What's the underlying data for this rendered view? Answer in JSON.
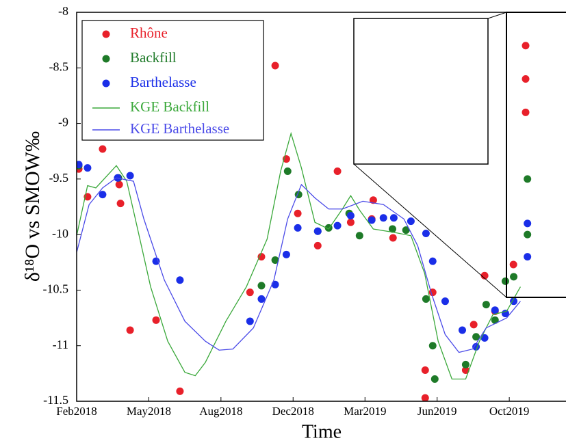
{
  "chart_data": {
    "type": "scatter",
    "x_label": "Time",
    "y_label": "δ¹⁸O vs SMOW‰",
    "xlim": [
      2018.083,
      2019.97
    ],
    "ylim": [
      -11.5,
      -8
    ],
    "xticks": [
      {
        "value": 2018.083,
        "label": "Feb2018"
      },
      {
        "value": 2018.361,
        "label": "May2018"
      },
      {
        "value": 2018.639,
        "label": "Aug2018"
      },
      {
        "value": 2018.917,
        "label": "Dec2018"
      },
      {
        "value": 2019.194,
        "label": "Mar2019"
      },
      {
        "value": 2019.472,
        "label": "Jun2019"
      },
      {
        "value": 2019.75,
        "label": "Oct2019"
      }
    ],
    "yticks": [
      -8,
      -8.5,
      -9,
      -9.5,
      -10,
      -10.5,
      -11,
      -11.5
    ],
    "legend": "top-left",
    "grid": false,
    "series": [
      {
        "name": "Rhône",
        "color": "#e8202a",
        "type": "scatter",
        "x": [
          2018.091,
          2018.125,
          2018.183,
          2018.247,
          2018.252,
          2018.289,
          2018.389,
          2018.481,
          2018.751,
          2018.795,
          2018.848,
          2018.891,
          2018.935,
          2019.012,
          2019.088,
          2019.139,
          2019.226,
          2019.22,
          2019.302,
          2019.455,
          2019.426,
          2019.426,
          2019.582,
          2019.613,
          2019.655,
          2019.695,
          2019.766,
          2019.813,
          2019.813,
          2019.813
        ],
        "values": [
          -9.41,
          -9.66,
          -9.23,
          -9.55,
          -9.72,
          -10.86,
          -10.77,
          -11.41,
          -10.52,
          -10.2,
          -8.48,
          -9.32,
          -9.81,
          -10.1,
          -9.43,
          -9.89,
          -9.69,
          -9.86,
          -10.03,
          -10.52,
          -11.22,
          -11.47,
          -11.22,
          -10.81,
          -10.37,
          -10.69,
          -10.27,
          -8.3,
          -8.6,
          -8.9
        ]
      },
      {
        "name": "Backfill",
        "color": "#1e7a28",
        "type": "scatter",
        "x": [
          2018.091,
          2018.244,
          2018.795,
          2018.848,
          2018.896,
          2018.938,
          2019.012,
          2019.054,
          2019.133,
          2019.173,
          2019.3,
          2019.352,
          2019.429,
          2019.455,
          2019.463,
          2019.582,
          2019.622,
          2019.661,
          2019.695,
          2019.735,
          2019.767,
          2019.82,
          2019.82
        ],
        "values": [
          -9.38,
          -9.49,
          -10.46,
          -10.23,
          -9.43,
          -9.64,
          -9.97,
          -9.94,
          -9.81,
          -10.01,
          -9.95,
          -9.96,
          -10.58,
          -11.0,
          -11.3,
          -11.17,
          -10.92,
          -10.63,
          -10.77,
          -10.42,
          -10.38,
          -9.5,
          -10.0
        ]
      },
      {
        "name": "Barthelasse",
        "color": "#1a2ee8",
        "type": "scatter",
        "x": [
          2018.091,
          2018.125,
          2018.183,
          2018.241,
          2018.289,
          2018.389,
          2018.481,
          2018.751,
          2018.795,
          2018.848,
          2018.891,
          2018.935,
          2019.012,
          2019.088,
          2019.139,
          2019.22,
          2019.265,
          2019.305,
          2019.371,
          2019.429,
          2019.455,
          2019.503,
          2019.569,
          2019.622,
          2019.655,
          2019.695,
          2019.735,
          2019.767,
          2019.82,
          2019.82
        ],
        "values": [
          -9.37,
          -9.4,
          -9.64,
          -9.49,
          -9.47,
          -10.24,
          -10.41,
          -10.78,
          -10.58,
          -10.45,
          -10.18,
          -9.94,
          -9.97,
          -9.92,
          -9.83,
          -9.87,
          -9.85,
          -9.85,
          -9.88,
          -9.99,
          -10.24,
          -10.6,
          -10.86,
          -11.01,
          -10.93,
          -10.68,
          -10.71,
          -10.6,
          -10.2,
          -9.9
        ]
      },
      {
        "name": "KGE Backfill",
        "color": "#3aa83a",
        "type": "line",
        "x": [
          2018.083,
          2018.125,
          2018.157,
          2018.236,
          2018.276,
          2018.315,
          2018.368,
          2018.434,
          2018.5,
          2018.54,
          2018.579,
          2018.658,
          2018.737,
          2018.817,
          2018.869,
          2018.909,
          2018.949,
          2019.001,
          2019.054,
          2019.107,
          2019.139,
          2019.173,
          2019.226,
          2019.305,
          2019.371,
          2019.424,
          2019.476,
          2019.529,
          2019.582,
          2019.635,
          2019.687,
          2019.74,
          2019.793
        ],
        "values": [
          -10.01,
          -9.56,
          -9.58,
          -9.38,
          -9.52,
          -9.92,
          -10.47,
          -10.96,
          -11.24,
          -11.27,
          -11.15,
          -10.78,
          -10.47,
          -10.04,
          -9.43,
          -9.09,
          -9.4,
          -9.89,
          -9.95,
          -9.77,
          -9.65,
          -9.78,
          -9.95,
          -9.98,
          -10.01,
          -10.35,
          -10.96,
          -11.3,
          -11.3,
          -10.96,
          -10.72,
          -10.69,
          -10.47
        ]
      },
      {
        "name": "KGE Barthelasse",
        "color": "#4a4ae8",
        "type": "line",
        "x": [
          2018.083,
          2018.131,
          2018.183,
          2018.236,
          2018.302,
          2018.342,
          2018.421,
          2018.5,
          2018.579,
          2018.632,
          2018.685,
          2018.764,
          2018.843,
          2018.896,
          2018.949,
          2019.001,
          2019.054,
          2019.107,
          2019.186,
          2019.265,
          2019.344,
          2019.397,
          2019.45,
          2019.503,
          2019.556,
          2019.609,
          2019.661,
          2019.74,
          2019.793
        ],
        "values": [
          -10.16,
          -9.73,
          -9.58,
          -9.49,
          -9.52,
          -9.86,
          -10.41,
          -10.78,
          -10.96,
          -11.04,
          -11.03,
          -10.84,
          -10.41,
          -9.86,
          -9.55,
          -9.67,
          -9.77,
          -9.77,
          -9.7,
          -9.73,
          -9.86,
          -10.1,
          -10.53,
          -10.9,
          -11.06,
          -11.03,
          -10.84,
          -10.75,
          -10.6
        ]
      }
    ]
  }
}
